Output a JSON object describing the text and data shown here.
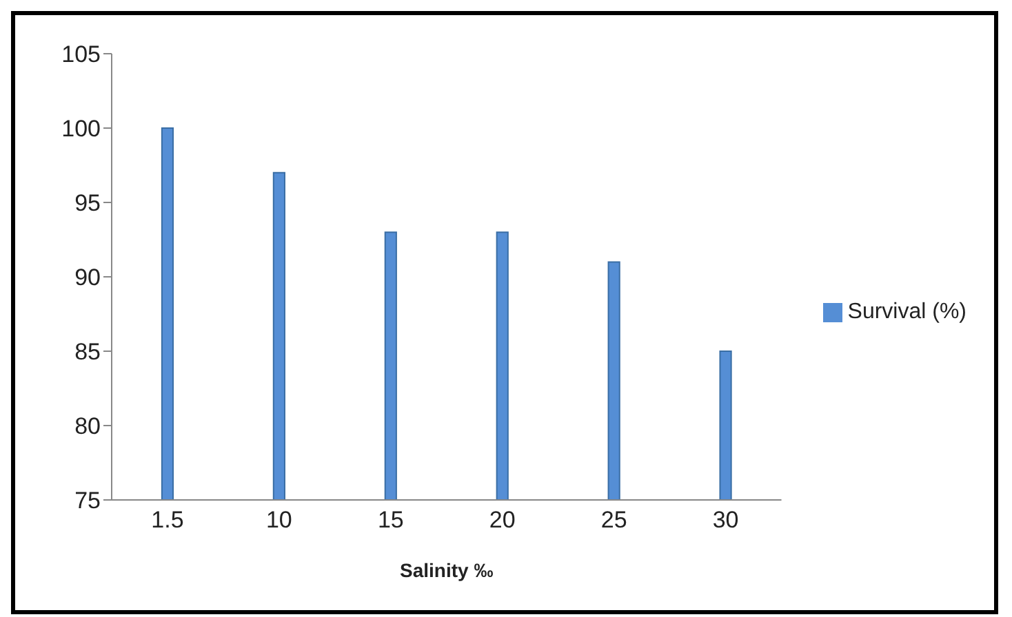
{
  "chart_data": {
    "type": "bar",
    "xlabel": "Salinity ‰",
    "categories": [
      "1.5",
      "10",
      "15",
      "20",
      "25",
      "30"
    ],
    "series": [
      {
        "name": "Survival (%)",
        "color": "#558ed5",
        "values": [
          100,
          97,
          93,
          93,
          91,
          85
        ]
      }
    ],
    "ylim": [
      75,
      105
    ],
    "yticks": [
      75,
      80,
      85,
      90,
      95,
      100,
      105
    ],
    "grid": false,
    "legend": "right"
  }
}
